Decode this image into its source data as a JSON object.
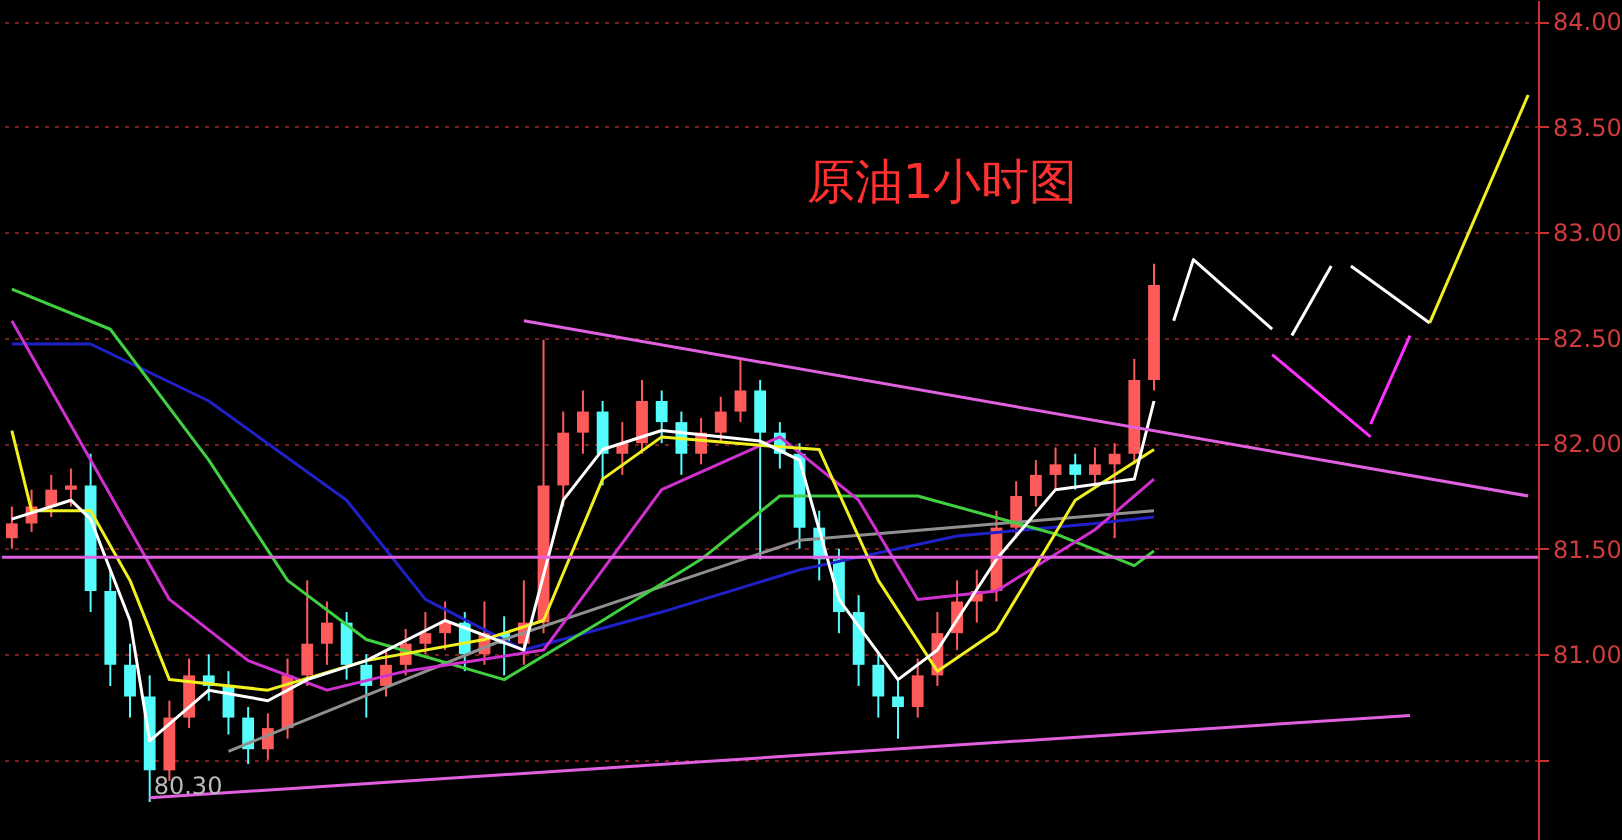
{
  "chart_data": {
    "type": "candlestick",
    "title": "原油1小时图",
    "tick_labels": "y",
    "grid": "y",
    "ylim": [
      80.12,
      84.1
    ],
    "yticks": [
      {
        "value": 80.5,
        "label": null
      },
      {
        "value": 81,
        "label": "81.00"
      },
      {
        "value": 81.5,
        "label": "81.50"
      },
      {
        "value": 82,
        "label": "82.00"
      },
      {
        "value": 82.5,
        "label": "82.50"
      },
      {
        "value": 83,
        "label": "83.00"
      },
      {
        "value": 83.5,
        "label": "83.50"
      },
      {
        "value": 84,
        "label": "84.00"
      }
    ],
    "categories": [
      null,
      null,
      null,
      null,
      null,
      null,
      null,
      null,
      null,
      null,
      null,
      null,
      null,
      null,
      null,
      null,
      null,
      null,
      null,
      null,
      null,
      null,
      null,
      null,
      null,
      null,
      null,
      null,
      null,
      null,
      null,
      null,
      null,
      null,
      null,
      null,
      null,
      null,
      null,
      null,
      null,
      null,
      null,
      null,
      null,
      null,
      null,
      null,
      null,
      null,
      null,
      null,
      null,
      null,
      null,
      null,
      null,
      null,
      null,
      null,
      null,
      null,
      null,
      null,
      null,
      null,
      null,
      null,
      null,
      null,
      null,
      null,
      null,
      null,
      null,
      null,
      null,
      null
    ],
    "ohlc": [
      [
        81.55,
        81.7,
        81.5,
        81.62
      ],
      [
        81.62,
        81.78,
        81.58,
        81.7
      ],
      [
        81.7,
        81.85,
        81.65,
        81.78
      ],
      [
        81.78,
        81.88,
        81.7,
        81.8
      ],
      [
        81.8,
        81.95,
        81.2,
        81.3
      ],
      [
        81.3,
        81.4,
        80.85,
        80.95
      ],
      [
        80.95,
        81.05,
        80.7,
        80.8
      ],
      [
        80.8,
        80.9,
        80.3,
        80.45
      ],
      [
        80.45,
        80.78,
        80.4,
        80.7
      ],
      [
        80.7,
        80.98,
        80.65,
        80.9
      ],
      [
        80.9,
        81.0,
        80.78,
        80.85
      ],
      [
        80.85,
        80.92,
        80.62,
        80.7
      ],
      [
        80.7,
        80.75,
        80.48,
        80.55
      ],
      [
        80.55,
        80.72,
        80.5,
        80.65
      ],
      [
        80.65,
        80.98,
        80.6,
        80.9
      ],
      [
        80.9,
        81.35,
        80.85,
        81.05
      ],
      [
        81.05,
        81.25,
        80.95,
        81.15
      ],
      [
        81.15,
        81.2,
        80.88,
        80.95
      ],
      [
        80.95,
        81.0,
        80.7,
        80.85
      ],
      [
        80.85,
        81.02,
        80.8,
        80.95
      ],
      [
        80.95,
        81.12,
        80.9,
        81.05
      ],
      [
        81.05,
        81.2,
        81.0,
        81.1
      ],
      [
        81.1,
        81.25,
        81.02,
        81.15
      ],
      [
        81.15,
        81.2,
        80.92,
        81.0
      ],
      [
        81.0,
        81.25,
        80.95,
        81.1
      ],
      [
        81.1,
        81.18,
        80.9,
        81.05
      ],
      [
        81.05,
        81.35,
        80.95,
        81.15
      ],
      [
        81.15,
        82.49,
        81.1,
        81.8
      ],
      [
        81.8,
        82.15,
        81.7,
        82.05
      ],
      [
        82.05,
        82.25,
        81.95,
        82.15
      ],
      [
        82.15,
        82.2,
        81.8,
        81.95
      ],
      [
        81.95,
        82.1,
        81.85,
        82.0
      ],
      [
        82.0,
        82.3,
        81.95,
        82.2
      ],
      [
        82.2,
        82.25,
        82.0,
        82.1
      ],
      [
        82.1,
        82.15,
        81.85,
        81.95
      ],
      [
        81.95,
        82.12,
        81.9,
        82.05
      ],
      [
        82.05,
        82.22,
        82.0,
        82.15
      ],
      [
        82.15,
        82.4,
        82.1,
        82.25
      ],
      [
        82.25,
        82.3,
        81.45,
        82.05
      ],
      [
        82.05,
        82.1,
        81.88,
        81.95
      ],
      [
        81.95,
        82.0,
        81.5,
        81.6
      ],
      [
        81.6,
        81.68,
        81.35,
        81.45
      ],
      [
        81.45,
        81.5,
        81.1,
        81.2
      ],
      [
        81.2,
        81.28,
        80.85,
        80.95
      ],
      [
        80.95,
        81.0,
        80.7,
        80.8
      ],
      [
        80.8,
        80.88,
        80.6,
        80.75
      ],
      [
        80.75,
        80.98,
        80.7,
        80.9
      ],
      [
        80.9,
        81.2,
        80.85,
        81.1
      ],
      [
        81.1,
        81.35,
        81.02,
        81.25
      ],
      [
        81.25,
        81.4,
        81.15,
        81.3
      ],
      [
        81.3,
        81.68,
        81.25,
        81.6
      ],
      [
        81.6,
        81.82,
        81.55,
        81.75
      ],
      [
        81.75,
        81.92,
        81.7,
        81.85
      ],
      [
        81.85,
        81.98,
        81.78,
        81.9
      ],
      [
        81.9,
        81.95,
        81.78,
        81.85
      ],
      [
        81.85,
        81.98,
        81.8,
        81.9
      ],
      [
        81.9,
        82.0,
        81.55,
        81.95
      ],
      [
        81.95,
        82.4,
        81.9,
        82.3
      ],
      [
        82.3,
        82.85,
        82.25,
        82.75
      ],
      null,
      null,
      null,
      null,
      null,
      null,
      null,
      null,
      null,
      null,
      null,
      null,
      null,
      null,
      null,
      null,
      null,
      null,
      null
    ],
    "colors": [
      "#ff5a5a",
      "#ff5a5a",
      "#ff5a5a",
      "#ff5a5a",
      "#54fcfc",
      "#54fcfc",
      "#54fcfc",
      "#54fcfc",
      "#ff5a5a",
      "#ff5a5a",
      "#54fcfc",
      "#54fcfc",
      "#54fcfc",
      "#ff5a5a",
      "#ff5a5a",
      "#ff5a5a",
      "#ff5a5a",
      "#54fcfc",
      "#54fcfc",
      "#ff5a5a",
      "#ff5a5a",
      "#ff5a5a",
      "#ff5a5a",
      "#54fcfc",
      "#ff5a5a",
      "#54fcfc",
      "#ff5a5a",
      "#ff5a5a",
      "#ff5a5a",
      "#ff5a5a",
      "#54fcfc",
      "#ff5a5a",
      "#ff5a5a",
      "#54fcfc",
      "#54fcfc",
      "#ff5a5a",
      "#ff5a5a",
      "#ff5a5a",
      "#54fcfc",
      "#54fcfc",
      "#54fcfc",
      "#54fcfc",
      "#54fcfc",
      "#54fcfc",
      "#54fcfc",
      "#54fcfc",
      "#ff5a5a",
      "#ff5a5a",
      "#ff5a5a",
      "#ff5a5a",
      "#ff5a5a",
      "#ff5a5a",
      "#ff5a5a",
      "#ff5a5a",
      "#54fcfc",
      "#ff5a5a",
      "#ff5a5a",
      "#ff5a5a",
      "#ff5a5a",
      null,
      null,
      null,
      null,
      null,
      null,
      null,
      null,
      null,
      null,
      null,
      null,
      null,
      null,
      null,
      null,
      null,
      null,
      null
    ],
    "series": [
      {
        "type": "line",
        "color": "#2020c8",
        "values": [
          82.47,
          null,
          null,
          null,
          82.47,
          null,
          null,
          null,
          null,
          null,
          82.2,
          null,
          null,
          null,
          null,
          null,
          null,
          81.73,
          null,
          null,
          null,
          81.26,
          null,
          null,
          null,
          null,
          81.02,
          null,
          null,
          null,
          null,
          null,
          null,
          81.2,
          null,
          null,
          null,
          null,
          null,
          null,
          81.4,
          null,
          null,
          null,
          null,
          null,
          null,
          null,
          81.56,
          null,
          null,
          null,
          null,
          null,
          null,
          81.62,
          null,
          null,
          81.65,
          null,
          null,
          null,
          null,
          null,
          null,
          null,
          null,
          null,
          null,
          null,
          null,
          null,
          null,
          null,
          null,
          null,
          null,
          null
        ]
      },
      {
        "type": "line",
        "color": "#909090",
        "values": [
          null,
          null,
          null,
          null,
          null,
          null,
          null,
          null,
          null,
          null,
          null,
          80.54,
          null,
          null,
          null,
          null,
          null,
          null,
          null,
          null,
          null,
          null,
          null,
          null,
          null,
          81.07,
          null,
          null,
          null,
          null,
          null,
          null,
          null,
          null,
          null,
          null,
          null,
          null,
          null,
          null,
          81.54,
          null,
          null,
          null,
          null,
          null,
          null,
          null,
          null,
          null,
          null,
          null,
          null,
          null,
          null,
          null,
          null,
          null,
          81.68,
          null,
          null,
          null,
          null,
          null,
          null,
          null,
          null,
          null,
          null,
          null,
          null,
          null,
          null,
          null,
          null,
          null,
          null,
          null
        ]
      },
      {
        "type": "line",
        "color": "#40d040",
        "values": [
          82.73,
          null,
          null,
          null,
          null,
          82.54,
          null,
          null,
          null,
          null,
          81.92,
          null,
          null,
          null,
          81.35,
          null,
          null,
          null,
          81.07,
          null,
          null,
          null,
          null,
          null,
          null,
          80.88,
          null,
          null,
          null,
          null,
          81.16,
          null,
          null,
          null,
          null,
          81.45,
          null,
          null,
          null,
          81.75,
          null,
          null,
          null,
          null,
          null,
          null,
          81.75,
          null,
          null,
          null,
          null,
          null,
          null,
          81.57,
          null,
          null,
          null,
          81.42,
          81.49,
          null,
          null,
          null,
          null,
          null,
          null,
          null,
          null,
          null,
          null,
          null,
          null,
          null,
          null,
          null,
          null,
          null,
          null,
          null
        ]
      },
      {
        "type": "line",
        "color": "#d030d0",
        "values": [
          82.58,
          null,
          null,
          null,
          81.92,
          null,
          null,
          null,
          81.26,
          null,
          null,
          null,
          80.97,
          null,
          null,
          null,
          80.83,
          null,
          null,
          null,
          80.92,
          null,
          null,
          null,
          null,
          null,
          null,
          81.02,
          null,
          null,
          null,
          null,
          null,
          81.78,
          null,
          null,
          null,
          null,
          null,
          82.03,
          null,
          null,
          null,
          81.73,
          null,
          null,
          81.26,
          null,
          null,
          null,
          81.3,
          null,
          null,
          null,
          null,
          81.59,
          null,
          null,
          81.83,
          null,
          null,
          null,
          null,
          null,
          null,
          null,
          null,
          null,
          null,
          null,
          null,
          null,
          null,
          null,
          null,
          null,
          null,
          null
        ]
      },
      {
        "type": "line",
        "color": "#f0f020",
        "values": [
          82.06,
          81.68,
          null,
          null,
          81.68,
          null,
          81.35,
          null,
          80.88,
          null,
          null,
          null,
          null,
          80.83,
          null,
          null,
          null,
          null,
          80.97,
          null,
          null,
          null,
          null,
          null,
          81.07,
          null,
          null,
          81.16,
          null,
          null,
          81.83,
          null,
          null,
          82.03,
          null,
          null,
          null,
          null,
          81.99,
          null,
          null,
          81.97,
          null,
          null,
          81.35,
          null,
          null,
          80.92,
          null,
          null,
          81.11,
          null,
          null,
          null,
          81.73,
          null,
          null,
          null,
          81.97,
          null,
          null,
          null,
          null,
          null,
          null,
          null,
          null,
          null,
          null,
          null,
          null,
          null,
          null,
          null,
          null,
          null,
          null,
          null
        ]
      },
      {
        "type": "line",
        "color": "#ffffff",
        "values": [
          81.64,
          null,
          null,
          81.73,
          81.64,
          null,
          81.16,
          80.59,
          null,
          null,
          80.83,
          null,
          null,
          80.78,
          null,
          80.88,
          null,
          null,
          80.97,
          null,
          null,
          null,
          81.16,
          null,
          null,
          null,
          81.02,
          null,
          81.73,
          null,
          81.97,
          null,
          null,
          82.06,
          null,
          null,
          null,
          null,
          82.01,
          null,
          81.92,
          null,
          81.26,
          null,
          null,
          80.88,
          null,
          81.02,
          null,
          null,
          81.45,
          null,
          null,
          81.78,
          null,
          null,
          null,
          81.83,
          82.2,
          null,
          null,
          null,
          null,
          null,
          null,
          null,
          null,
          null,
          null,
          null,
          null,
          null,
          null,
          null,
          null,
          null,
          null,
          null
        ]
      },
      {
        "type": "line",
        "color": "#e060e0",
        "values": [
          null,
          null,
          null,
          null,
          null,
          null,
          null,
          null,
          null,
          null,
          null,
          null,
          null,
          null,
          null,
          null,
          null,
          null,
          null,
          null,
          null,
          null,
          null,
          null,
          null,
          null,
          82.58,
          null,
          null,
          null,
          null,
          null,
          null,
          null,
          null,
          null,
          null,
          null,
          null,
          null,
          null,
          null,
          null,
          null,
          null,
          null,
          null,
          null,
          null,
          null,
          null,
          null,
          null,
          null,
          null,
          null,
          null,
          null,
          null,
          null,
          null,
          null,
          null,
          null,
          null,
          null,
          null,
          null,
          null,
          null,
          null,
          null,
          null,
          null,
          null,
          null,
          null,
          81.75
        ]
      },
      {
        "type": "line",
        "color": "#e060e0",
        "values": [
          null,
          null,
          null,
          null,
          null,
          null,
          null,
          80.32,
          null,
          null,
          null,
          null,
          null,
          null,
          null,
          null,
          null,
          null,
          null,
          null,
          null,
          null,
          null,
          null,
          null,
          null,
          null,
          null,
          null,
          null,
          null,
          null,
          null,
          null,
          null,
          null,
          null,
          null,
          null,
          null,
          null,
          null,
          null,
          null,
          null,
          null,
          null,
          null,
          null,
          null,
          null,
          null,
          null,
          null,
          null,
          null,
          null,
          null,
          null,
          null,
          null,
          null,
          null,
          null,
          null,
          null,
          null,
          null,
          null,
          null,
          null,
          80.71,
          null,
          null,
          null,
          null,
          null,
          null
        ]
      },
      {
        "type": "line",
        "color": "#ffffff",
        "values": [
          null,
          null,
          null,
          null,
          null,
          null,
          null,
          null,
          null,
          null,
          null,
          null,
          null,
          null,
          null,
          null,
          null,
          null,
          null,
          null,
          null,
          null,
          null,
          null,
          null,
          null,
          null,
          null,
          null,
          null,
          null,
          null,
          null,
          null,
          null,
          null,
          null,
          null,
          null,
          null,
          null,
          null,
          null,
          null,
          null,
          null,
          null,
          null,
          null,
          null,
          null,
          null,
          null,
          null,
          null,
          null,
          null,
          null,
          null,
          82.58,
          82.87,
          null,
          null,
          null,
          82.54,
          null,
          null,
          null,
          null,
          null,
          null,
          null,
          null,
          null,
          null,
          null,
          null,
          null
        ]
      },
      {
        "type": "line",
        "color": "#ffffff",
        "values": [
          null,
          null,
          null,
          null,
          null,
          null,
          null,
          null,
          null,
          null,
          null,
          null,
          null,
          null,
          null,
          null,
          null,
          null,
          null,
          null,
          null,
          null,
          null,
          null,
          null,
          null,
          null,
          null,
          null,
          null,
          null,
          null,
          null,
          null,
          null,
          null,
          null,
          null,
          null,
          null,
          null,
          null,
          null,
          null,
          null,
          null,
          null,
          null,
          null,
          null,
          null,
          null,
          null,
          null,
          null,
          null,
          null,
          null,
          null,
          null,
          null,
          null,
          null,
          null,
          null,
          82.51,
          null,
          82.84,
          null,
          null,
          null,
          null,
          null,
          null,
          null,
          null,
          null,
          null
        ]
      },
      {
        "type": "line",
        "color": "#ffffff",
        "values": [
          null,
          null,
          null,
          null,
          null,
          null,
          null,
          null,
          null,
          null,
          null,
          null,
          null,
          null,
          null,
          null,
          null,
          null,
          null,
          null,
          null,
          null,
          null,
          null,
          null,
          null,
          null,
          null,
          null,
          null,
          null,
          null,
          null,
          null,
          null,
          null,
          null,
          null,
          null,
          null,
          null,
          null,
          null,
          null,
          null,
          null,
          null,
          null,
          null,
          null,
          null,
          null,
          null,
          null,
          null,
          null,
          null,
          null,
          null,
          null,
          null,
          null,
          null,
          null,
          null,
          null,
          null,
          null,
          82.84,
          null,
          null,
          null,
          82.57,
          null,
          null,
          null,
          null,
          null
        ]
      },
      {
        "type": "line",
        "color": "#f0f020",
        "values": [
          null,
          null,
          null,
          null,
          null,
          null,
          null,
          null,
          null,
          null,
          null,
          null,
          null,
          null,
          null,
          null,
          null,
          null,
          null,
          null,
          null,
          null,
          null,
          null,
          null,
          null,
          null,
          null,
          null,
          null,
          null,
          null,
          null,
          null,
          null,
          null,
          null,
          null,
          null,
          null,
          null,
          null,
          null,
          null,
          null,
          null,
          null,
          null,
          null,
          null,
          null,
          null,
          null,
          null,
          null,
          null,
          null,
          null,
          null,
          null,
          null,
          null,
          null,
          null,
          null,
          null,
          null,
          null,
          null,
          null,
          null,
          null,
          82.57,
          null,
          null,
          null,
          null,
          83.65
        ]
      },
      {
        "type": "line",
        "color": "#ff30ff",
        "values": [
          null,
          null,
          null,
          null,
          null,
          null,
          null,
          null,
          null,
          null,
          null,
          null,
          null,
          null,
          null,
          null,
          null,
          null,
          null,
          null,
          null,
          null,
          null,
          null,
          null,
          null,
          null,
          null,
          null,
          null,
          null,
          null,
          null,
          null,
          null,
          null,
          null,
          null,
          null,
          null,
          null,
          null,
          null,
          null,
          null,
          null,
          null,
          null,
          null,
          null,
          null,
          null,
          null,
          null,
          null,
          null,
          null,
          null,
          null,
          null,
          null,
          null,
          null,
          null,
          82.42,
          null,
          null,
          null,
          null,
          82.03,
          null,
          null,
          null,
          null,
          null,
          null,
          null,
          null
        ]
      },
      {
        "type": "line",
        "color": "#ff30ff",
        "values": [
          null,
          null,
          null,
          null,
          null,
          null,
          null,
          null,
          null,
          null,
          null,
          null,
          null,
          null,
          null,
          null,
          null,
          null,
          null,
          null,
          null,
          null,
          null,
          null,
          null,
          null,
          null,
          null,
          null,
          null,
          null,
          null,
          null,
          null,
          null,
          null,
          null,
          null,
          null,
          null,
          null,
          null,
          null,
          null,
          null,
          null,
          null,
          null,
          null,
          null,
          null,
          null,
          null,
          null,
          null,
          null,
          null,
          null,
          null,
          null,
          null,
          null,
          null,
          null,
          null,
          null,
          null,
          null,
          null,
          82.09,
          null,
          82.51,
          null,
          null,
          null,
          null,
          null,
          null
        ]
      }
    ],
    "ref_lines": [
      {
        "axis": "y",
        "value": 81.46,
        "color": "#e060e0"
      }
    ],
    "annotations": [
      "80.30"
    ]
  }
}
